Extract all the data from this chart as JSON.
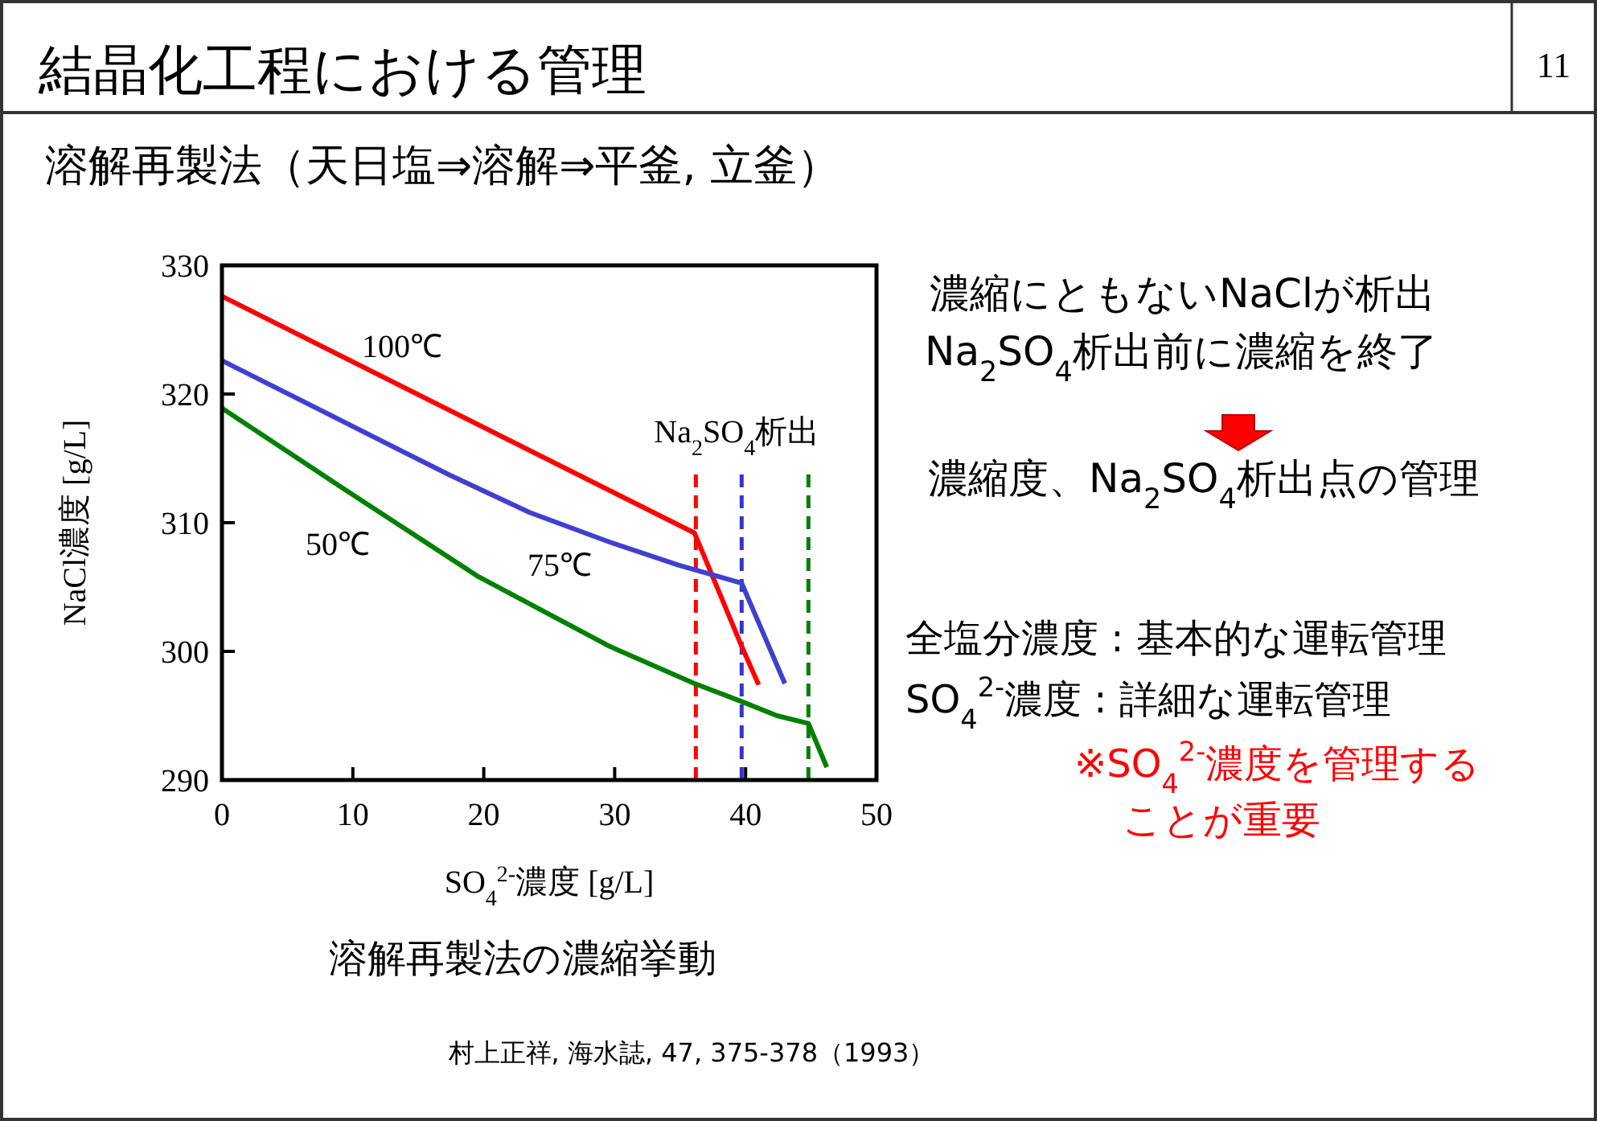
{
  "chart_data": {
    "type": "line",
    "title": "結晶化工程における管理",
    "subtitle": "溶解再製法（天日塩⇒溶解⇒平釜, 立釜）",
    "xlabel": "SO$_{4}$$^{2-}$濃度  [g/L]",
    "ylabel": "NaCl濃度  [g/L]",
    "xlim": [
      0,
      50
    ],
    "xticks": [
      0,
      10,
      20,
      30,
      40,
      50
    ],
    "ylim": [
      290,
      330
    ],
    "yticks": [
      290,
      300,
      310,
      320,
      330
    ],
    "grid": false,
    "marker": "none",
    "line_style": "solid",
    "series": [
      {
        "name": "100℃",
        "color": "#ff0000",
        "x": [
          0,
          36.1,
          39.7,
          41.0
        ],
        "values": [
          327.6,
          309.2,
          300.4,
          297.4
        ]
      },
      {
        "name": "75℃",
        "color": "#4040d0",
        "x": [
          0,
          17.4,
          23.5,
          29.6,
          34.9,
          39.7,
          43.0
        ],
        "values": [
          322.6,
          313.7,
          310.8,
          308.5,
          306.7,
          305.3,
          297.5
        ]
      },
      {
        "name": "50℃",
        "color": "#008000",
        "x": [
          0,
          9.2,
          19.6,
          29.6,
          36.1,
          39.7,
          42.4,
          44.8,
          46.2
        ],
        "values": [
          318.9,
          312.7,
          305.8,
          300.4,
          297.5,
          296.1,
          295.0,
          294.4,
          291.0
        ]
      }
    ],
    "ref_lines": [
      {
        "axis": "x",
        "value": 36.2,
        "color": "#ff0000",
        "line_style": "dashed",
        "label": "Na$_{2}$SO$_{4}$析出"
      },
      {
        "axis": "x",
        "value": 39.7,
        "color": "#3333dd",
        "line_style": "dashed"
      },
      {
        "axis": "x",
        "value": 44.8,
        "color": "#008000",
        "line_style": "dashed"
      }
    ],
    "annotations": [
      "11",
      "濃縮にともないNaClが析出",
      "Na$_{2}$SO$_{4}$析出前に濃縮を終了",
      "濃縮度、Na$_{2}$SO$_{4}$析出点の管理",
      "全塩分濃度 : 基本的な運転管理",
      "SO$_{4}$$^{2-}$濃度 : 詳細な運転管理",
      "※SO$_{4}$$^{2-}$濃度を管理する",
      "ことが重要",
      "溶解再製法の濃縮挙動",
      "村上正祥, 海水誌, 47, 375-378（1993）"
    ]
  }
}
